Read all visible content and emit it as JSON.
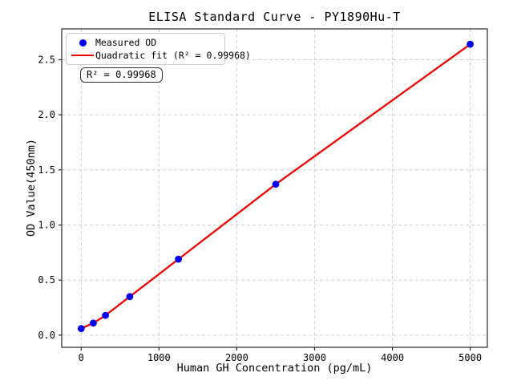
{
  "chart_data": {
    "type": "scatter",
    "title": "ELISA Standard Curve - PY1890Hu-T",
    "xlabel": "Human GH Concentration (pg/mL)",
    "ylabel": "OD Value(450nm)",
    "xlim": [
      -250,
      5220
    ],
    "ylim": [
      -0.11,
      2.78
    ],
    "grid": true,
    "legend_position": "upper left",
    "xticks": [
      {
        "v": 0,
        "label": "0"
      },
      {
        "v": 1000,
        "label": "1000"
      },
      {
        "v": 2000,
        "label": "2000"
      },
      {
        "v": 3000,
        "label": "3000"
      },
      {
        "v": 4000,
        "label": "4000"
      },
      {
        "v": 5000,
        "label": "5000"
      }
    ],
    "yticks": [
      {
        "v": 0.0,
        "label": "0.0"
      },
      {
        "v": 0.5,
        "label": "0.5"
      },
      {
        "v": 1.0,
        "label": "1.0"
      },
      {
        "v": 1.5,
        "label": "1.5"
      },
      {
        "v": 2.0,
        "label": "2.0"
      },
      {
        "v": 2.5,
        "label": "2.5"
      }
    ],
    "series": [
      {
        "name": "Measured OD",
        "kind": "scatter",
        "color": "#0000ee",
        "x": [
          0,
          156.25,
          312.5,
          625,
          1250,
          2500,
          5000
        ],
        "y": [
          0.06,
          0.11,
          0.18,
          0.35,
          0.69,
          1.37,
          2.64
        ]
      },
      {
        "name": "Quadratic fit (R² = 0.99968)",
        "kind": "line",
        "color": "#ee0000",
        "x": [
          0,
          156.25,
          312.5,
          625,
          1250,
          2500,
          5000
        ],
        "y": [
          0.06,
          0.11,
          0.18,
          0.35,
          0.69,
          1.37,
          2.64
        ]
      }
    ],
    "annotation": "R² = 0.99968",
    "r_squared": "0.99968",
    "colors": {
      "grid": "#cfcfcf",
      "spine": "#262626",
      "text": "#000000",
      "background": "#ffffff"
    }
  }
}
